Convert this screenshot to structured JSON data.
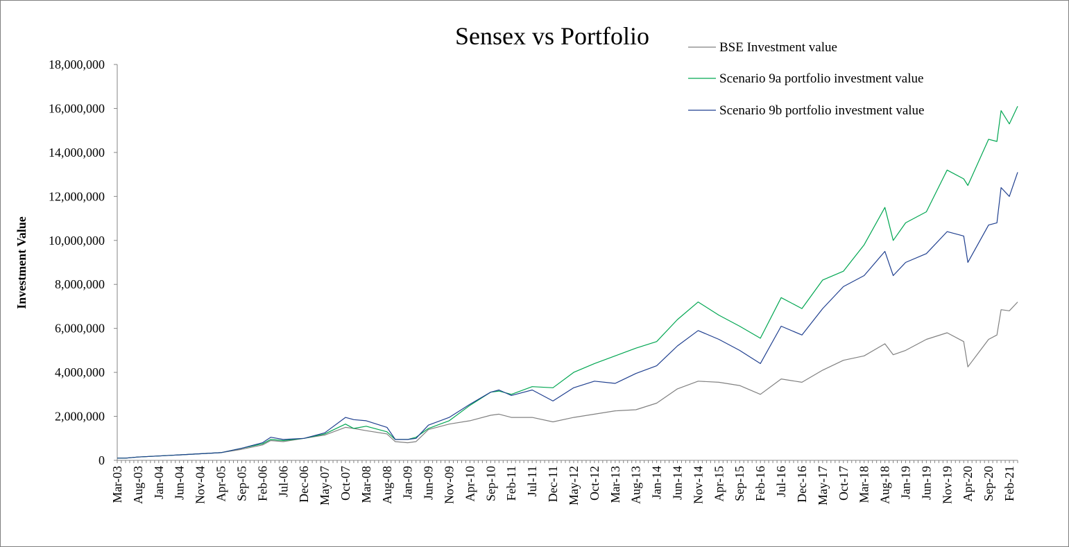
{
  "chart_data": {
    "type": "line",
    "title": "Sensex vs Portfolio",
    "xlabel": "",
    "ylabel": "Investment Value",
    "ylim": [
      0,
      18000000
    ],
    "yticks": [
      0,
      2000000,
      4000000,
      6000000,
      8000000,
      10000000,
      12000000,
      14000000,
      16000000,
      18000000
    ],
    "ytick_labels": [
      "0",
      "2,000,000",
      "4,000,000",
      "6,000,000",
      "8,000,000",
      "10,000,000",
      "12,000,000",
      "14,000,000",
      "16,000,000",
      "18,000,000"
    ],
    "xtick_labels": [
      "Mar-03",
      "Aug-03",
      "Jan-04",
      "Jun-04",
      "Nov-04",
      "Apr-05",
      "Sep-05",
      "Feb-06",
      "Jul-06",
      "Dec-06",
      "May-07",
      "Oct-07",
      "Mar-08",
      "Aug-08",
      "Jan-09",
      "Jun-09",
      "Nov-09",
      "Apr-10",
      "Sep-10",
      "Feb-11",
      "Jul-11",
      "Dec-11",
      "May-12",
      "Oct-12",
      "Mar-13",
      "Aug-13",
      "Jan-14",
      "Jun-14",
      "Nov-14",
      "Apr-15",
      "Sep-15",
      "Feb-16",
      "Jul-16",
      "Dec-16",
      "May-17",
      "Oct-17",
      "Mar-18",
      "Aug-18",
      "Jan-19",
      "Jun-19",
      "Nov-19",
      "Apr-20",
      "Sep-20",
      "Feb-21"
    ],
    "x": [
      "Mar-03",
      "May-03",
      "Aug-03",
      "Jan-04",
      "Jun-04",
      "Nov-04",
      "Apr-05",
      "Sep-05",
      "Feb-06",
      "Apr-06",
      "Jul-06",
      "Dec-06",
      "May-07",
      "Oct-07",
      "Dec-07",
      "Mar-08",
      "Aug-08",
      "Oct-08",
      "Jan-09",
      "Mar-09",
      "Jun-09",
      "Nov-09",
      "Apr-10",
      "Sep-10",
      "Nov-10",
      "Feb-11",
      "Jul-11",
      "Dec-11",
      "May-12",
      "Oct-12",
      "Mar-13",
      "Aug-13",
      "Jan-14",
      "Jun-14",
      "Nov-14",
      "Apr-15",
      "Sep-15",
      "Feb-16",
      "Jul-16",
      "Dec-16",
      "May-17",
      "Oct-17",
      "Mar-18",
      "Aug-18",
      "Oct-18",
      "Jan-19",
      "Jun-19",
      "Nov-19",
      "Mar-20",
      "Apr-20",
      "Sep-20",
      "Nov-20",
      "Dec-20",
      "Feb-21",
      "Apr-21"
    ],
    "series": [
      {
        "name": "BSE Investment value",
        "color": "#808080",
        "values": [
          100000,
          100000,
          150000,
          200000,
          250000,
          300000,
          350000,
          500000,
          700000,
          900000,
          850000,
          1000000,
          1150000,
          1500000,
          1450000,
          1350000,
          1200000,
          850000,
          800000,
          850000,
          1400000,
          1650000,
          1800000,
          2050000,
          2100000,
          1950000,
          1950000,
          1750000,
          1950000,
          2100000,
          2250000,
          2300000,
          2600000,
          3250000,
          3600000,
          3550000,
          3400000,
          3000000,
          3700000,
          3550000,
          4100000,
          4550000,
          4750000,
          5300000,
          4800000,
          5000000,
          5500000,
          5800000,
          5400000,
          4250000,
          5500000,
          5700000,
          6850000,
          6800000,
          7200000
        ]
      },
      {
        "name": "Scenario 9a portfolio investment value",
        "color": "#00a651",
        "values": [
          100000,
          100000,
          150000,
          200000,
          250000,
          300000,
          350000,
          550000,
          750000,
          950000,
          900000,
          1000000,
          1200000,
          1650000,
          1450000,
          1550000,
          1300000,
          950000,
          950000,
          1050000,
          1450000,
          1800000,
          2500000,
          3100000,
          3150000,
          3000000,
          3350000,
          3300000,
          4000000,
          4400000,
          4750000,
          5100000,
          5400000,
          6400000,
          7200000,
          6600000,
          6100000,
          5550000,
          7400000,
          6900000,
          8200000,
          8600000,
          9800000,
          11500000,
          10000000,
          10800000,
          11300000,
          13200000,
          12800000,
          12500000,
          14600000,
          14500000,
          15900000,
          15300000,
          16100000
        ]
      },
      {
        "name": "Scenario 9b portfolio investment value",
        "color": "#1f3f8f",
        "values": [
          100000,
          100000,
          150000,
          200000,
          250000,
          300000,
          350000,
          550000,
          800000,
          1050000,
          950000,
          1000000,
          1250000,
          1950000,
          1850000,
          1800000,
          1500000,
          950000,
          950000,
          1000000,
          1600000,
          1950000,
          2550000,
          3100000,
          3200000,
          2950000,
          3200000,
          2700000,
          3300000,
          3600000,
          3500000,
          3950000,
          4300000,
          5200000,
          5900000,
          5500000,
          5000000,
          4400000,
          6100000,
          5700000,
          6900000,
          7900000,
          8400000,
          9500000,
          8400000,
          9000000,
          9400000,
          10400000,
          10200000,
          9000000,
          10700000,
          10800000,
          12400000,
          12000000,
          13100000
        ]
      }
    ],
    "legend": "top-right",
    "grid": false
  }
}
